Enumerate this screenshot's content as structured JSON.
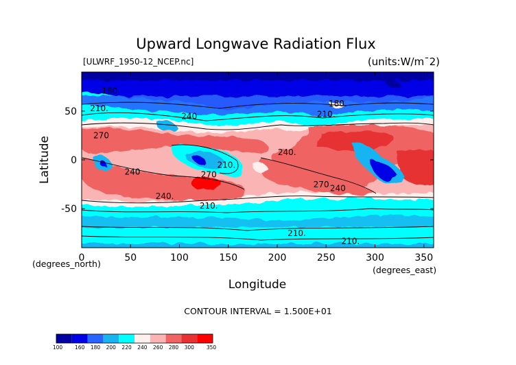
{
  "chart_data": {
    "type": "heatmap",
    "title": "Upward Longwave Radiation Flux",
    "file_label": "[ULWRF_1950-12_NCEP.nc]",
    "units_label": "(units:W/m^2)",
    "xlabel": "Longitude",
    "ylabel": "Latitude",
    "x_unit_label": "(degrees_east)",
    "y_unit_label": "(degrees_north)",
    "xlim": [
      0,
      360
    ],
    "ylim": [
      -90,
      90
    ],
    "x_ticks": [
      0,
      50,
      100,
      150,
      200,
      250,
      300,
      350
    ],
    "y_ticks": [
      50,
      0,
      -50
    ],
    "contour_interval_text": "CONTOUR INTERVAL = 1.500E+01",
    "contour_labels": [
      {
        "text": "180.",
        "lon": 30,
        "lat": 68
      },
      {
        "text": "210.",
        "lon": 18,
        "lat": 50
      },
      {
        "text": "240",
        "lon": 110,
        "lat": 42
      },
      {
        "text": "270",
        "lon": 20,
        "lat": 22
      },
      {
        "text": "240.",
        "lon": 210,
        "lat": 5
      },
      {
        "text": "210.",
        "lon": 148,
        "lat": -8
      },
      {
        "text": "240",
        "lon": 52,
        "lat": -15
      },
      {
        "text": "270",
        "lon": 130,
        "lat": -18
      },
      {
        "text": "270",
        "lon": 245,
        "lat": -28
      },
      {
        "text": "240",
        "lon": 262,
        "lat": -32
      },
      {
        "text": "240.",
        "lon": 85,
        "lat": -40
      },
      {
        "text": "210.",
        "lon": 130,
        "lat": -50
      },
      {
        "text": "180.",
        "lon": 262,
        "lat": 55
      },
      {
        "text": "210.",
        "lon": 250,
        "lat": 44
      },
      {
        "text": "210.",
        "lon": 220,
        "lat": -78
      },
      {
        "text": "210.",
        "lon": 275,
        "lat": -86
      }
    ],
    "colorbar": {
      "levels": [
        "100",
        "160",
        "180",
        "200",
        "220",
        "240",
        "260",
        "280",
        "300",
        "350"
      ],
      "colors": [
        "#0000a0",
        "#0000e6",
        "#2a64ff",
        "#19b4f0",
        "#00ffff",
        "#fff0ee",
        "#fab4b4",
        "#f06464",
        "#e63232",
        "#ff0000"
      ]
    }
  }
}
